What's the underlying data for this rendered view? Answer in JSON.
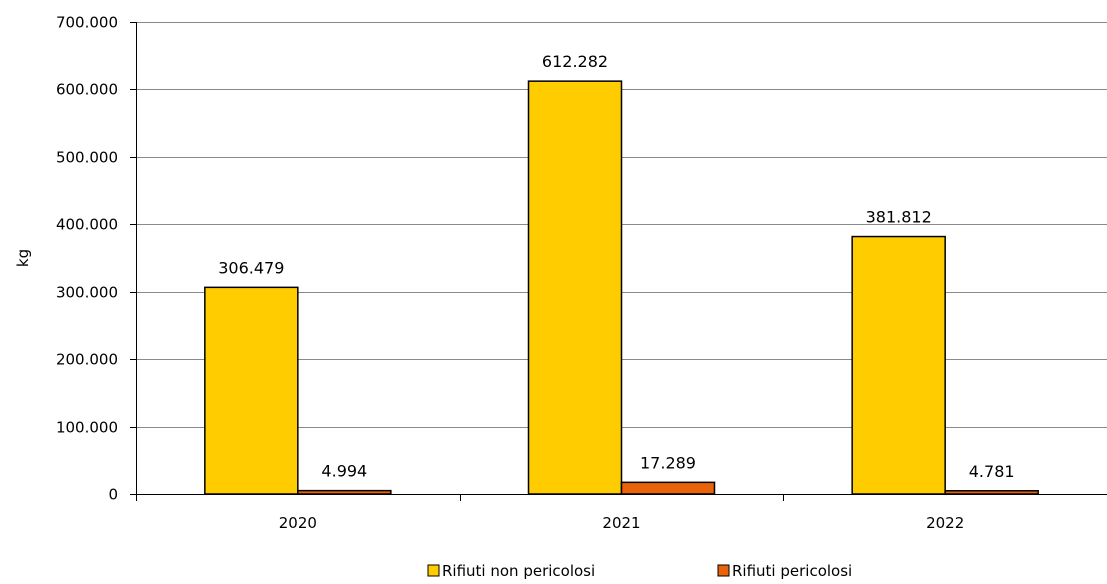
{
  "chart_data": {
    "type": "bar",
    "title": "",
    "xlabel": "",
    "ylabel": "kg",
    "categories": [
      "2020",
      "2021",
      "2022"
    ],
    "ylim": [
      0,
      700000
    ],
    "yticks": [
      0,
      100000,
      200000,
      300000,
      400000,
      500000,
      600000,
      700000
    ],
    "ytick_labels": [
      "0",
      "100.000",
      "200.000",
      "300.000",
      "400.000",
      "500.000",
      "600.000",
      "700.000"
    ],
    "grid": true,
    "legend_position": "bottom",
    "series": [
      {
        "name": "Rifiuti non pericolosi",
        "color": "#FFCC00",
        "values": [
          306479,
          612282,
          381812
        ],
        "labels": [
          "306.479",
          "612.282",
          "381.812"
        ]
      },
      {
        "name": "Rifiuti pericolosi",
        "color": "#E8630A",
        "values": [
          4994,
          17289,
          4781
        ],
        "labels": [
          "4.994",
          "17.289",
          "4.781"
        ]
      }
    ]
  }
}
